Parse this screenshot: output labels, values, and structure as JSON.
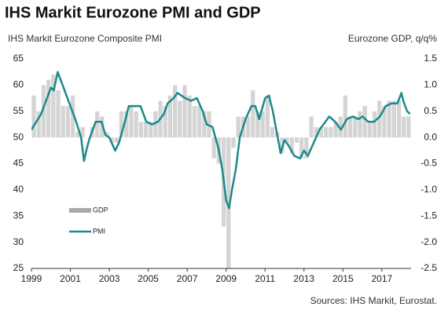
{
  "chart_data": {
    "type": "bar_line",
    "title": "IHS Markit Eurozone PMI and GDP",
    "y_label": "IHS Markit Eurozone Composite  PMI",
    "y2_label": "Eurozone GDP, q/q%",
    "source": "Sources: IHS Markit, Eurostat.",
    "xlim": [
      1999,
      2018.5
    ],
    "xticks": [
      1999,
      2001,
      2003,
      2005,
      2007,
      2009,
      2011,
      2013,
      2015,
      2017
    ],
    "ylim": [
      25,
      65
    ],
    "yticks": [
      25,
      30,
      35,
      40,
      45,
      50,
      55,
      60,
      65
    ],
    "y2lim": [
      -2.5,
      1.5
    ],
    "y2ticks": [
      -2.5,
      {
        "value": -2.0,
        "label": "-2.0"
      },
      -1.5,
      {
        "value": -1.0,
        "label": "-1.0"
      },
      -0.5,
      {
        "value": 0.0,
        "label": "0.0"
      },
      0.5,
      {
        "value": 1.0,
        "label": "1.0"
      },
      1.5
    ],
    "legend": "left",
    "series": [
      {
        "name": "GDP",
        "type": "bar",
        "axis": "y2",
        "color": "#d4d4d4",
        "x": [
          1999.125,
          1999.375,
          1999.625,
          1999.875,
          2000.125,
          2000.375,
          2000.625,
          2000.875,
          2001.125,
          2001.375,
          2001.625,
          2001.875,
          2002.125,
          2002.375,
          2002.625,
          2002.875,
          2003.125,
          2003.375,
          2003.625,
          2003.875,
          2004.125,
          2004.375,
          2004.625,
          2004.875,
          2005.125,
          2005.375,
          2005.625,
          2005.875,
          2006.125,
          2006.375,
          2006.625,
          2006.875,
          2007.125,
          2007.375,
          2007.625,
          2007.875,
          2008.125,
          2008.375,
          2008.625,
          2008.875,
          2009.125,
          2009.375,
          2009.625,
          2009.875,
          2010.125,
          2010.375,
          2010.625,
          2010.875,
          2011.125,
          2011.375,
          2011.625,
          2011.875,
          2012.125,
          2012.375,
          2012.625,
          2012.875,
          2013.125,
          2013.375,
          2013.625,
          2013.875,
          2014.125,
          2014.375,
          2014.625,
          2014.875,
          2015.125,
          2015.375,
          2015.625,
          2015.875,
          2016.125,
          2016.375,
          2016.625,
          2016.875,
          2017.125,
          2017.375,
          2017.625,
          2017.875,
          2018.125,
          2018.375
        ],
        "values": [
          0.8,
          0.5,
          1.0,
          1.1,
          1.2,
          0.9,
          0.6,
          0.6,
          0.8,
          0.1,
          0.2,
          0.0,
          0.2,
          0.5,
          0.4,
          0.1,
          -0.1,
          -0.1,
          0.5,
          0.5,
          0.6,
          0.5,
          0.3,
          0.3,
          0.3,
          0.5,
          0.7,
          0.6,
          0.8,
          1.0,
          0.7,
          1.0,
          0.8,
          0.6,
          0.6,
          0.5,
          0.5,
          -0.4,
          -0.5,
          -1.7,
          -2.5,
          -0.2,
          0.4,
          0.4,
          0.4,
          0.9,
          0.5,
          0.5,
          0.8,
          0.2,
          0.1,
          -0.3,
          -0.1,
          -0.3,
          -0.1,
          -0.4,
          -0.4,
          0.4,
          0.2,
          0.2,
          0.2,
          0.2,
          0.3,
          0.4,
          0.8,
          0.4,
          0.4,
          0.5,
          0.6,
          0.3,
          0.5,
          0.7,
          0.6,
          0.7,
          0.7,
          0.7,
          0.4,
          0.4
        ]
      },
      {
        "name": "PMI",
        "type": "line",
        "color": "#1b8a8c",
        "x": [
          1999.0,
          1999.25,
          1999.5,
          1999.75,
          2000.0,
          2000.15,
          2000.35,
          2000.5,
          2000.8,
          2001.0,
          2001.3,
          2001.55,
          2001.7,
          2001.85,
          2002.0,
          2002.3,
          2002.6,
          2002.8,
          2003.0,
          2003.3,
          2003.5,
          2003.8,
          2004.0,
          2004.3,
          2004.6,
          2004.9,
          2005.2,
          2005.5,
          2005.8,
          2006.0,
          2006.3,
          2006.5,
          2006.9,
          2007.2,
          2007.5,
          2007.8,
          2008.0,
          2008.3,
          2008.6,
          2008.8,
          2009.0,
          2009.15,
          2009.3,
          2009.5,
          2009.7,
          2010.0,
          2010.3,
          2010.5,
          2010.7,
          2011.0,
          2011.2,
          2011.4,
          2011.6,
          2011.8,
          2012.0,
          2012.2,
          2012.5,
          2012.8,
          2013.0,
          2013.2,
          2013.5,
          2013.8,
          2014.0,
          2014.3,
          2014.6,
          2014.9,
          2015.2,
          2015.5,
          2015.8,
          2016.0,
          2016.3,
          2016.6,
          2016.9,
          2017.2,
          2017.5,
          2017.8,
          2018.0,
          2018.1,
          2018.3,
          2018.45
        ],
        "values": [
          51.5,
          53,
          54.5,
          57,
          59.5,
          59,
          62.5,
          61,
          58,
          56,
          53,
          50,
          45.5,
          48,
          50,
          53,
          53,
          50.5,
          50,
          47.5,
          49,
          53,
          56,
          56,
          56,
          53,
          52.5,
          53,
          54.5,
          56.5,
          57.5,
          58.5,
          57.5,
          57,
          57.5,
          55,
          52.5,
          52,
          48,
          44,
          38,
          36.5,
          40,
          44,
          50,
          53.5,
          56,
          56,
          53.5,
          57.5,
          58,
          55,
          51,
          47,
          49.5,
          48.5,
          46.5,
          46,
          47.5,
          46.5,
          49,
          51.5,
          52.5,
          54,
          53,
          51.5,
          53.5,
          54,
          53.5,
          54,
          53,
          53,
          54,
          56,
          56.5,
          56.5,
          58.5,
          57,
          55,
          54.5
        ]
      }
    ]
  }
}
